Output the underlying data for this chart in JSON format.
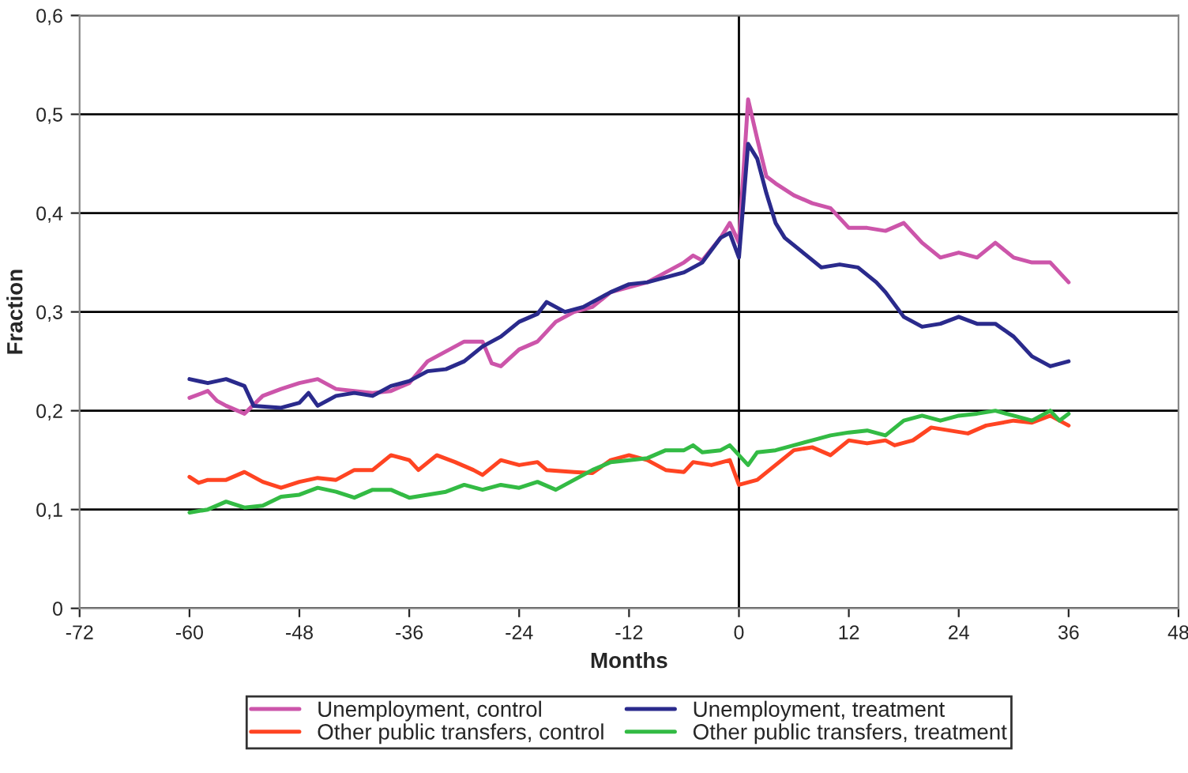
{
  "chart_data": {
    "type": "line",
    "xlabel": "Months",
    "ylabel": "Fraction",
    "xlim": [
      -72,
      48
    ],
    "xticks": [
      -72,
      -60,
      -48,
      -36,
      -24,
      -12,
      0,
      12,
      24,
      36,
      48
    ],
    "ylim": [
      0,
      0.6
    ],
    "yticks": [
      0,
      {
        "value": 0.1,
        "label": "0,1"
      },
      {
        "value": 0.2,
        "label": "0,2"
      },
      {
        "value": 0.3,
        "label": "0,3"
      },
      {
        "value": 0.4,
        "label": "0,4"
      },
      {
        "value": 0.5,
        "label": "0,5"
      },
      {
        "value": 0.6,
        "label": "0,6"
      }
    ],
    "grid": "y",
    "legend": "bottom",
    "marker": "none",
    "line_style": "solid",
    "ref_lines": [
      {
        "axis": "x",
        "value": 0,
        "color": "#000000"
      }
    ],
    "series": [
      {
        "name": "Unemployment, control",
        "color": "#cc55aa",
        "x": [
          -60,
          -58,
          -57,
          -56,
          -54,
          -52,
          -50,
          -48,
          -46,
          -44,
          -42,
          -40,
          -38,
          -36,
          -34,
          -32,
          -30,
          -28,
          -27,
          -26,
          -24,
          -22,
          -20,
          -18,
          -16,
          -14,
          -12,
          -10,
          -8,
          -6,
          -5,
          -4,
          -2,
          -1,
          0,
          1,
          2,
          3,
          4,
          6,
          8,
          10,
          12,
          14,
          16,
          18,
          20,
          22,
          24,
          26,
          28,
          30,
          32,
          34,
          36
        ],
        "values": [
          0.213,
          0.22,
          0.21,
          0.205,
          0.197,
          0.215,
          0.222,
          0.228,
          0.232,
          0.222,
          0.22,
          0.218,
          0.22,
          0.228,
          0.25,
          0.26,
          0.27,
          0.27,
          0.248,
          0.245,
          0.262,
          0.27,
          0.29,
          0.3,
          0.305,
          0.32,
          0.325,
          0.33,
          0.34,
          0.35,
          0.357,
          0.352,
          0.375,
          0.39,
          0.37,
          0.515,
          0.475,
          0.437,
          0.43,
          0.418,
          0.41,
          0.405,
          0.385,
          0.385,
          0.382,
          0.39,
          0.37,
          0.355,
          0.36,
          0.355,
          0.37,
          0.355,
          0.35,
          0.35,
          0.33
        ]
      },
      {
        "name": "Unemployment, treatment",
        "color": "#2a2a8c",
        "x": [
          -60,
          -58,
          -56,
          -54,
          -53,
          -50,
          -48,
          -47,
          -46,
          -44,
          -42,
          -40,
          -38,
          -36,
          -34,
          -32,
          -30,
          -28,
          -26,
          -24,
          -22,
          -21,
          -19,
          -17,
          -14,
          -12,
          -10,
          -8,
          -6,
          -4,
          -2,
          -1,
          0,
          1,
          2,
          3,
          4,
          5,
          7,
          9,
          11,
          13,
          15,
          16,
          18,
          20,
          22,
          24,
          26,
          28,
          30,
          32,
          34,
          36
        ],
        "values": [
          0.232,
          0.228,
          0.232,
          0.225,
          0.205,
          0.203,
          0.208,
          0.218,
          0.205,
          0.215,
          0.218,
          0.215,
          0.225,
          0.23,
          0.24,
          0.242,
          0.25,
          0.265,
          0.275,
          0.29,
          0.298,
          0.31,
          0.3,
          0.305,
          0.32,
          0.328,
          0.33,
          0.335,
          0.34,
          0.35,
          0.375,
          0.38,
          0.355,
          0.47,
          0.455,
          0.42,
          0.39,
          0.375,
          0.36,
          0.345,
          0.348,
          0.345,
          0.33,
          0.32,
          0.295,
          0.285,
          0.288,
          0.295,
          0.288,
          0.288,
          0.275,
          0.255,
          0.245,
          0.25
        ]
      },
      {
        "name": "Other public transfers, control",
        "color": "#ff4422",
        "x": [
          -60,
          -59,
          -58,
          -56,
          -54,
          -52,
          -50,
          -48,
          -46,
          -44,
          -42,
          -40,
          -38,
          -36,
          -35,
          -33,
          -31,
          -29,
          -28,
          -26,
          -24,
          -22,
          -21,
          -18,
          -16,
          -14,
          -12,
          -10,
          -8,
          -6,
          -5,
          -3,
          -1,
          0,
          2,
          4,
          6,
          8,
          10,
          12,
          14,
          16,
          17,
          19,
          21,
          23,
          25,
          27,
          30,
          32,
          34,
          36
        ],
        "values": [
          0.133,
          0.127,
          0.13,
          0.13,
          0.138,
          0.128,
          0.122,
          0.128,
          0.132,
          0.13,
          0.14,
          0.14,
          0.155,
          0.15,
          0.14,
          0.155,
          0.148,
          0.14,
          0.135,
          0.15,
          0.145,
          0.148,
          0.14,
          0.138,
          0.137,
          0.15,
          0.155,
          0.15,
          0.14,
          0.138,
          0.148,
          0.145,
          0.15,
          0.125,
          0.13,
          0.145,
          0.16,
          0.163,
          0.155,
          0.17,
          0.167,
          0.17,
          0.165,
          0.17,
          0.183,
          0.18,
          0.177,
          0.185,
          0.19,
          0.188,
          0.195,
          0.185
        ]
      },
      {
        "name": "Other public transfers, treatment",
        "color": "#33bb44",
        "x": [
          -60,
          -58,
          -56,
          -54,
          -52,
          -50,
          -48,
          -46,
          -44,
          -42,
          -40,
          -38,
          -36,
          -34,
          -32,
          -30,
          -28,
          -26,
          -24,
          -22,
          -20,
          -18,
          -16,
          -14,
          -12,
          -10,
          -8,
          -6,
          -5,
          -4,
          -2,
          -1,
          0,
          1,
          2,
          4,
          6,
          8,
          10,
          12,
          14,
          16,
          18,
          20,
          22,
          24,
          26,
          28,
          30,
          32,
          34,
          35,
          36
        ],
        "values": [
          0.097,
          0.1,
          0.108,
          0.102,
          0.104,
          0.113,
          0.115,
          0.122,
          0.118,
          0.112,
          0.12,
          0.12,
          0.112,
          0.115,
          0.118,
          0.125,
          0.12,
          0.125,
          0.122,
          0.128,
          0.12,
          0.13,
          0.14,
          0.148,
          0.15,
          0.152,
          0.16,
          0.16,
          0.165,
          0.158,
          0.16,
          0.165,
          0.155,
          0.145,
          0.158,
          0.16,
          0.165,
          0.17,
          0.175,
          0.178,
          0.18,
          0.175,
          0.19,
          0.195,
          0.19,
          0.195,
          0.197,
          0.2,
          0.195,
          0.19,
          0.2,
          0.19,
          0.197
        ]
      }
    ]
  }
}
